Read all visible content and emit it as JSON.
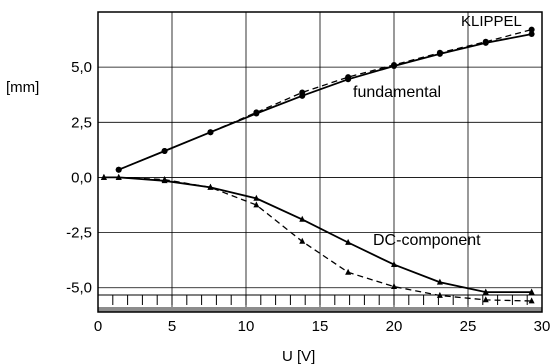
{
  "chart_data": {
    "type": "line",
    "title": "",
    "brand": "KLIPPEL",
    "xlabel": "U  [V]",
    "ylabel": "[mm]",
    "xlim": [
      0,
      30
    ],
    "ylim": [
      -6.1,
      7.5
    ],
    "xticks": [
      0,
      5,
      10,
      15,
      20,
      25,
      30
    ],
    "xtick_labels": [
      "0",
      "5",
      "10",
      "15",
      "20",
      "25",
      "30"
    ],
    "yticks": [
      5.0,
      2.5,
      0.0,
      -2.5,
      -5.0
    ],
    "ytick_labels": [
      "5,0",
      "2,5",
      "0,0",
      "-2,5",
      "-5,0"
    ],
    "grid": true,
    "annotations": [
      {
        "text": "fundamental",
        "x": 22.3,
        "y": 3.55
      },
      {
        "text": "DC-component",
        "x": 23.6,
        "y": -2.9
      }
    ],
    "series": [
      {
        "group": "fundamental",
        "style": "solid",
        "marker": "circle",
        "x": [
          1.4,
          4.5,
          7.6,
          10.7,
          13.8,
          16.9,
          20.0,
          23.1,
          26.2,
          29.3
        ],
        "y": [
          0.35,
          1.2,
          2.05,
          2.9,
          3.7,
          4.45,
          5.05,
          5.6,
          6.1,
          6.5
        ]
      },
      {
        "group": "fundamental",
        "style": "dashed",
        "marker": "circle",
        "x": [
          1.4,
          4.5,
          7.6,
          10.7,
          13.8,
          16.9,
          20.0,
          23.1,
          26.2,
          29.3
        ],
        "y": [
          0.35,
          1.2,
          2.05,
          2.95,
          3.85,
          4.55,
          5.1,
          5.65,
          6.15,
          6.7
        ]
      },
      {
        "group": "DC-component",
        "style": "solid",
        "marker": "triangle",
        "x": [
          0.4,
          1.4,
          4.5,
          7.6,
          10.7,
          13.8,
          16.9,
          20.0,
          23.1,
          26.2,
          29.3
        ],
        "y": [
          0.0,
          0.0,
          -0.15,
          -0.45,
          -0.95,
          -1.9,
          -2.95,
          -3.95,
          -4.75,
          -5.2,
          -5.2
        ]
      },
      {
        "group": "DC-component",
        "style": "dashed",
        "marker": "triangle",
        "x": [
          0.4,
          1.4,
          4.5,
          7.6,
          10.7,
          13.8,
          16.9,
          20.0,
          23.1,
          26.2,
          29.3
        ],
        "y": [
          0.0,
          0.0,
          -0.1,
          -0.45,
          -1.25,
          -2.9,
          -4.3,
          -4.95,
          -5.35,
          -5.55,
          -5.6
        ]
      }
    ]
  }
}
